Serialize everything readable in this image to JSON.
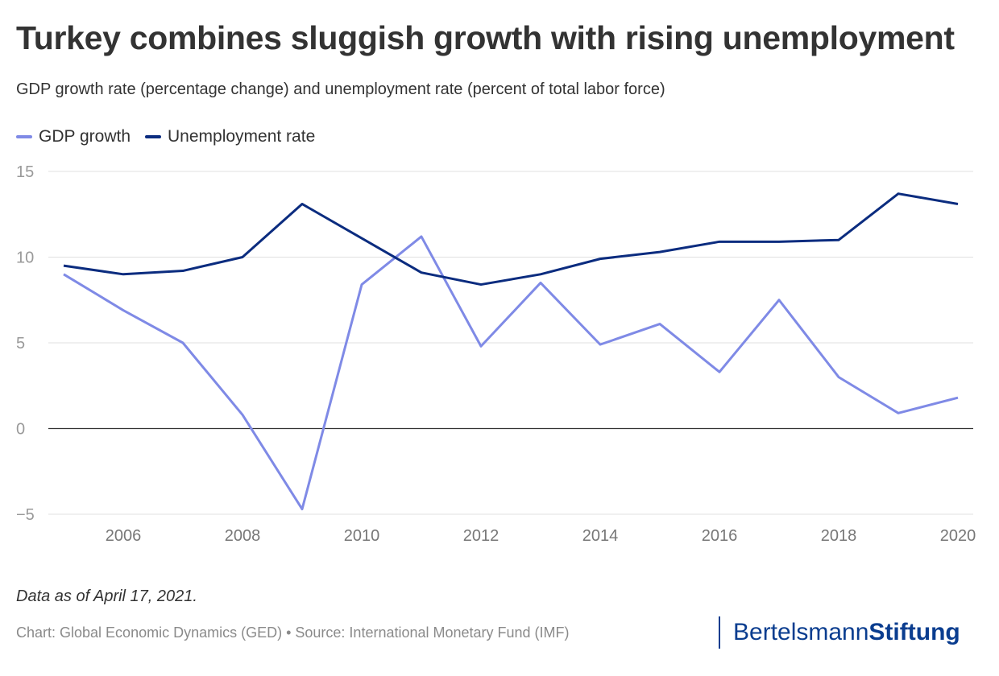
{
  "title": "Turkey combines sluggish growth with rising unemployment",
  "subtitle": "GDP growth rate (percentage change) and unemployment rate (percent of total labor force)",
  "note": "Data as of April 17, 2021.",
  "credit": "Chart: Global Economic Dynamics (GED) • Source: International Monetary Fund (IMF)",
  "logo": {
    "part1": "Bertelsmann",
    "part2": "Stiftung"
  },
  "chart_data": {
    "type": "line",
    "x": [
      2005,
      2006,
      2007,
      2008,
      2009,
      2010,
      2011,
      2012,
      2013,
      2014,
      2015,
      2016,
      2017,
      2018,
      2019,
      2020
    ],
    "series": [
      {
        "name": "GDP growth",
        "color": "#7f8ae6",
        "values": [
          9.0,
          6.9,
          5.0,
          0.8,
          -4.7,
          8.4,
          11.2,
          4.8,
          8.5,
          4.9,
          6.1,
          3.3,
          7.5,
          3.0,
          0.9,
          1.8
        ]
      },
      {
        "name": "Unemployment rate",
        "color": "#0b2c7f",
        "values": [
          9.5,
          9.0,
          9.2,
          10.0,
          13.1,
          11.1,
          9.1,
          8.4,
          9.0,
          9.9,
          10.3,
          10.9,
          10.9,
          11.0,
          13.7,
          13.1
        ]
      }
    ],
    "ylim": [
      -5,
      15
    ],
    "yticks": [
      -5,
      0,
      5,
      10,
      15
    ],
    "xticks": [
      2006,
      2008,
      2010,
      2012,
      2014,
      2016,
      2018,
      2020
    ],
    "xlim": [
      2005,
      2020
    ],
    "grid": true,
    "legend": "top-left"
  }
}
